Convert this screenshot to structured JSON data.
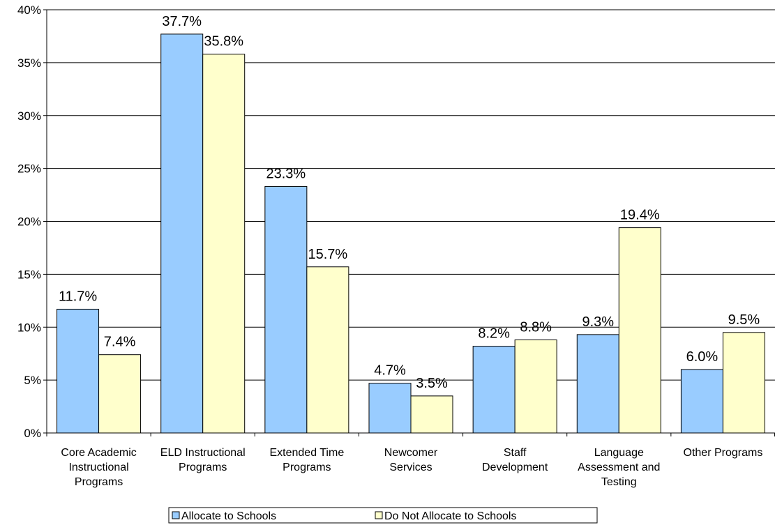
{
  "chart_data": {
    "type": "bar",
    "categories": [
      [
        "Core Academic",
        "Instructional",
        "Programs"
      ],
      [
        "ELD Instructional",
        "Programs"
      ],
      [
        "Extended Time",
        "Programs"
      ],
      [
        "Newcomer",
        "Services"
      ],
      [
        "Staff",
        "Development"
      ],
      [
        "Language",
        "Assessment and",
        "Testing"
      ],
      [
        "Other Programs"
      ]
    ],
    "series": [
      {
        "name": "Allocate to Schools",
        "values": [
          11.7,
          37.7,
          23.3,
          4.7,
          8.2,
          9.3,
          6.0
        ],
        "labels": [
          "11.7%",
          "37.7%",
          "23.3%",
          "4.7%",
          "8.2%",
          "9.3%",
          "6.0%"
        ],
        "color": "#99ccff"
      },
      {
        "name": "Do Not Allocate to Schools",
        "values": [
          7.4,
          35.8,
          15.7,
          3.5,
          8.8,
          19.4,
          9.5
        ],
        "labels": [
          "7.4%",
          "35.8%",
          "15.7%",
          "3.5%",
          "8.8%",
          "19.4%",
          "9.5%"
        ],
        "color": "#ffffcc"
      }
    ],
    "ylim": [
      0,
      40
    ],
    "yticks": [
      0,
      5,
      10,
      15,
      20,
      25,
      30,
      35,
      40
    ],
    "ytick_labels": [
      "0%",
      "5%",
      "10%",
      "15%",
      "20%",
      "25%",
      "30%",
      "35%",
      "40%"
    ],
    "grid": true,
    "legend_position": "bottom-center",
    "title": "",
    "xlabel": "",
    "ylabel": ""
  }
}
